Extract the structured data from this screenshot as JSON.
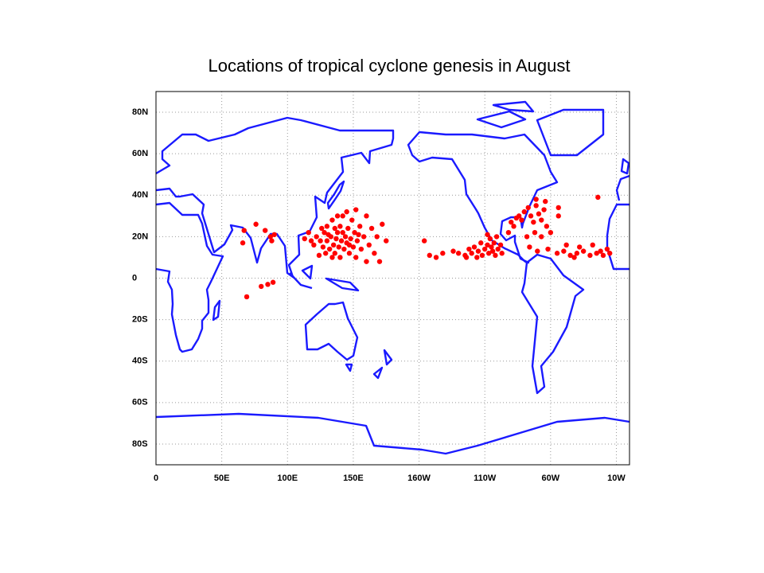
{
  "chart_data": {
    "type": "scatter",
    "title": "Locations of tropical cyclone genesis in August",
    "xlim": [
      0,
      360
    ],
    "ylim": [
      -90,
      90
    ],
    "xticks": [
      0,
      {
        "value": 50,
        "label": "50E"
      },
      {
        "value": 100,
        "label": "100E"
      },
      {
        "value": 150,
        "label": "150E"
      },
      {
        "value": 200,
        "label": "160W"
      },
      {
        "value": 250,
        "label": "110W"
      },
      {
        "value": 300,
        "label": "60W"
      },
      {
        "value": 350,
        "label": "10W"
      }
    ],
    "yticks": [
      {
        "value": 80,
        "label": "80N"
      },
      {
        "value": 60,
        "label": "60N"
      },
      {
        "value": 40,
        "label": "40N"
      },
      {
        "value": 20,
        "label": "20N"
      },
      0,
      {
        "value": -20,
        "label": "20S"
      },
      {
        "value": -40,
        "label": "40S"
      },
      {
        "value": -60,
        "label": "60S"
      },
      {
        "value": -80,
        "label": "80S"
      }
    ],
    "grid": true,
    "series": [
      {
        "color": "#ff0000",
        "x": [
          118,
          120,
          122,
          125,
          127,
          128,
          130,
          130,
          132,
          133,
          134,
          135,
          136,
          137,
          138,
          139,
          140,
          140,
          141,
          142,
          143,
          144,
          145,
          146,
          147,
          148,
          149,
          150,
          151,
          152,
          153,
          155,
          156,
          158,
          160,
          162,
          164,
          166,
          168,
          172,
          175,
          126,
          129,
          134,
          138,
          145,
          152,
          160,
          170,
          113,
          116,
          124,
          131,
          136,
          142,
          147,
          154,
          67,
          76,
          83,
          87,
          90,
          88,
          66,
          69,
          80,
          85,
          89,
          208,
          218,
          230,
          235,
          238,
          240,
          242,
          245,
          247,
          248,
          250,
          252,
          253,
          254,
          255,
          256,
          257,
          258,
          259,
          260,
          262,
          263,
          252,
          244,
          236,
          226,
          213,
          204,
          268,
          270,
          272,
          274,
          276,
          278,
          280,
          283,
          285,
          287,
          289,
          291,
          293,
          295,
          297,
          282,
          288,
          293,
          300,
          306,
          284,
          290,
          298,
          305,
          310,
          315,
          320,
          325,
          330,
          335,
          338,
          340,
          343,
          345,
          332,
          322,
          312,
          318,
          336,
          306,
          289,
          296
        ],
        "y": [
          18,
          16,
          20,
          18,
          15,
          22,
          18,
          25,
          14,
          20,
          28,
          16,
          12,
          19,
          22,
          15,
          25,
          10,
          18,
          30,
          14,
          20,
          17,
          24,
          12,
          19,
          28,
          15,
          22,
          10,
          18,
          25,
          14,
          20,
          30,
          16,
          24,
          12,
          20,
          26,
          18,
          24,
          12,
          10,
          30,
          32,
          33,
          8,
          8,
          19,
          22,
          11,
          21,
          24,
          22,
          16,
          21,
          23,
          26,
          23,
          20,
          21,
          18,
          17,
          -9,
          -4,
          -3,
          -2,
          11,
          12,
          12,
          11,
          14,
          12,
          15,
          13,
          17,
          11,
          14,
          16,
          12,
          19,
          15,
          13,
          17,
          11,
          20,
          14,
          16,
          12,
          21,
          10,
          10,
          13,
          10,
          18,
          22,
          27,
          25,
          29,
          30,
          28,
          32,
          34,
          30,
          27,
          35,
          31,
          28,
          33,
          25,
          20,
          22,
          20,
          22,
          30,
          15,
          13,
          14,
          12,
          13,
          11,
          12,
          13,
          11,
          12,
          13,
          11,
          14,
          12,
          16,
          15,
          16,
          10,
          39,
          34,
          38,
          37
        ]
      }
    ]
  }
}
